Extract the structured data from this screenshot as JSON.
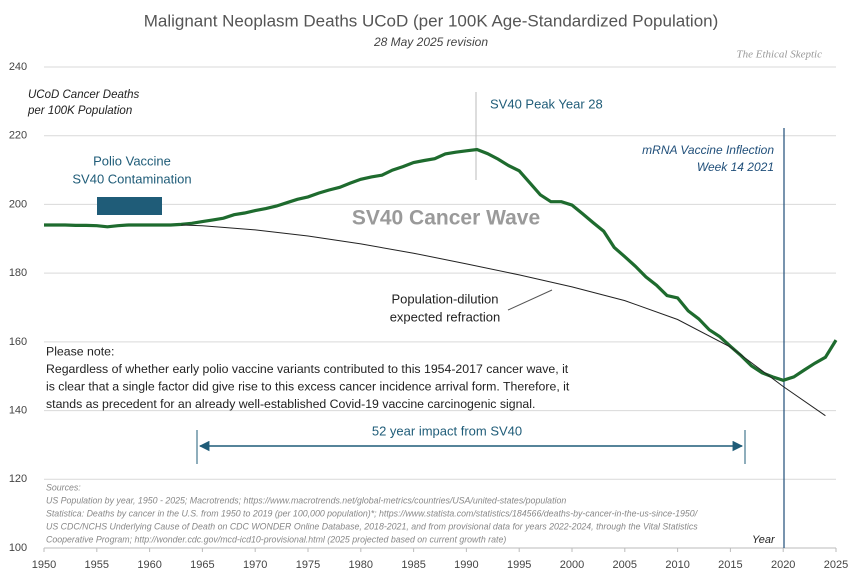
{
  "chart_data": {
    "type": "line",
    "title": "Malignant Neoplasm Deaths UCoD (per 100K Age-Standardized Population)",
    "subtitle": "28 May 2025 revision",
    "watermark": "The Ethical Skeptic",
    "y_axis_label": [
      "UCoD Cancer Deaths",
      "per 100K Population"
    ],
    "x_axis_label": "Year",
    "xlim": [
      1950,
      2025
    ],
    "xticks": [
      1950,
      1955,
      1960,
      1965,
      1970,
      1975,
      1980,
      1985,
      1990,
      1995,
      2000,
      2005,
      2010,
      2015,
      2020,
      2025
    ],
    "ylim": [
      100,
      240
    ],
    "yticks": [
      100,
      120,
      140,
      160,
      180,
      200,
      220,
      240
    ],
    "grid": true,
    "series": [
      {
        "color": "#1e6b2e",
        "x": [
          1950,
          1951,
          1952,
          1953,
          1954,
          1955,
          1956,
          1957,
          1958,
          1959,
          1960,
          1961,
          1962,
          1963,
          1964,
          1965,
          1966,
          1967,
          1968,
          1969,
          1970,
          1971,
          1972,
          1973,
          1974,
          1975,
          1976,
          1977,
          1978,
          1979,
          1980,
          1981,
          1982,
          1983,
          1984,
          1985,
          1986,
          1987,
          1988,
          1989,
          1990,
          1991,
          1992,
          1993,
          1994,
          1995,
          1996,
          1997,
          1998,
          1999,
          2000,
          2001,
          2002,
          2003,
          2004,
          2005,
          2006,
          2007,
          2008,
          2009,
          2010,
          2011,
          2012,
          2013,
          2014,
          2015,
          2016,
          2017,
          2018,
          2019,
          2020,
          2021,
          2022,
          2023,
          2024,
          2025
        ],
        "values": [
          194,
          194,
          194,
          193.9,
          193.9,
          193.8,
          193.5,
          193.8,
          194,
          194,
          194,
          194,
          194,
          194.2,
          194.5,
          195,
          195.5,
          196,
          197,
          197.5,
          198.2,
          198.8,
          199.5,
          200.5,
          201.5,
          202.2,
          203.3,
          204.2,
          205,
          206.2,
          207.3,
          208,
          208.5,
          210,
          211,
          212.2,
          212.8,
          213.3,
          214.7,
          215.2,
          215.6,
          216,
          214.8,
          213.2,
          211.3,
          209.8,
          206.3,
          202.8,
          200.8,
          200.8,
          199.8,
          197.3,
          194.7,
          192.2,
          187.5,
          184.8,
          182,
          178.9,
          176.5,
          173.5,
          172.8,
          169,
          166.7,
          163.5,
          161.5,
          158.7,
          156,
          153,
          151,
          149.8,
          148.8,
          149.8,
          151.8,
          153.8,
          155.5,
          160.5
        ]
      },
      {
        "color": "#222222",
        "x": [
          1963,
          1965,
          1970,
          1975,
          1980,
          1985,
          1990,
          1995,
          2000,
          2005,
          2010,
          2015,
          2020,
          2024
        ],
        "values": [
          194,
          193.8,
          192.6,
          190.8,
          188.5,
          185.8,
          182.7,
          179.5,
          176,
          172,
          166.5,
          158.5,
          147,
          138.5
        ]
      }
    ],
    "annotations": {
      "polio": [
        "Polio Vaccine",
        "SV40 Contamination"
      ],
      "peak": "SV40 Peak Year 28",
      "wave": "SV40 Cancer Wave",
      "mrna": [
        "mRNA Vaccine Inflection",
        "Week 14 2021"
      ],
      "dilution": [
        "Population-dilution",
        "expected refraction"
      ],
      "impact": "52 year impact from SV40",
      "note": [
        "Please note:",
        "Regardless of whether early polio vaccine variants contributed to this 1954-2017 cancer wave, it",
        "is clear that a single factor did give rise to this excess cancer incidence arrival form. Therefore, it",
        "stands as precedent for an already well-established Covid-19 vaccine carcinogenic signal."
      ]
    },
    "sources": [
      "Sources:",
      "US Population by year, 1950 - 2025; Macrotrends; https://www.macrotrends.net/global-metrics/countries/USA/united-states/population",
      "Statistica: Deaths by cancer in the U.S. from 1950 to 2019 (per 100,000 population)*; https://www.statista.com/statistics/184566/deaths-by-cancer-in-the-us-since-1950/",
      "US CDC/NCHS Underlying Cause of Death on CDC WONDER Online Database, 2018-2021, and from provisional data for years 2022-2024, through the Vital Statistics",
      "Cooperative Program; http://wonder.cdc.gov/mcd-icd10-provisional.html (2025 projected based on current growth rate)"
    ]
  }
}
